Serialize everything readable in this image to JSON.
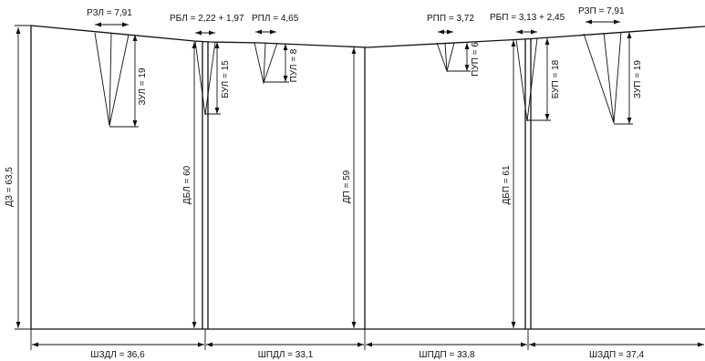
{
  "labels": {
    "rzl": "РЗЛ = 7,91",
    "rbl": "РБЛ = 2,22 + 1,97",
    "rpl": "РПЛ = 4,65",
    "rpp": "РПП = 3,72",
    "rbp": "РБП = 3,13 + 2,45",
    "rzp": "РЗП = 7,91",
    "zul": "ЗУЛ = 19",
    "bul": "БУЛ = 15",
    "pul": "ПУЛ = 8",
    "pup": "ПУП = 6",
    "bup": "БУП = 18",
    "zup": "ЗУП = 19",
    "dz": "ДЗ = 63,5",
    "dbl": "ДБЛ = 60",
    "dp": "ДП = 59",
    "dbp": "ДБП = 61",
    "shzdl": "ШЗДЛ = 36,6",
    "shpdl": "ШПДЛ = 33,1",
    "shpdp": "ШПДП = 33,8",
    "shzdp": "ШЗДП = 37,4"
  }
}
